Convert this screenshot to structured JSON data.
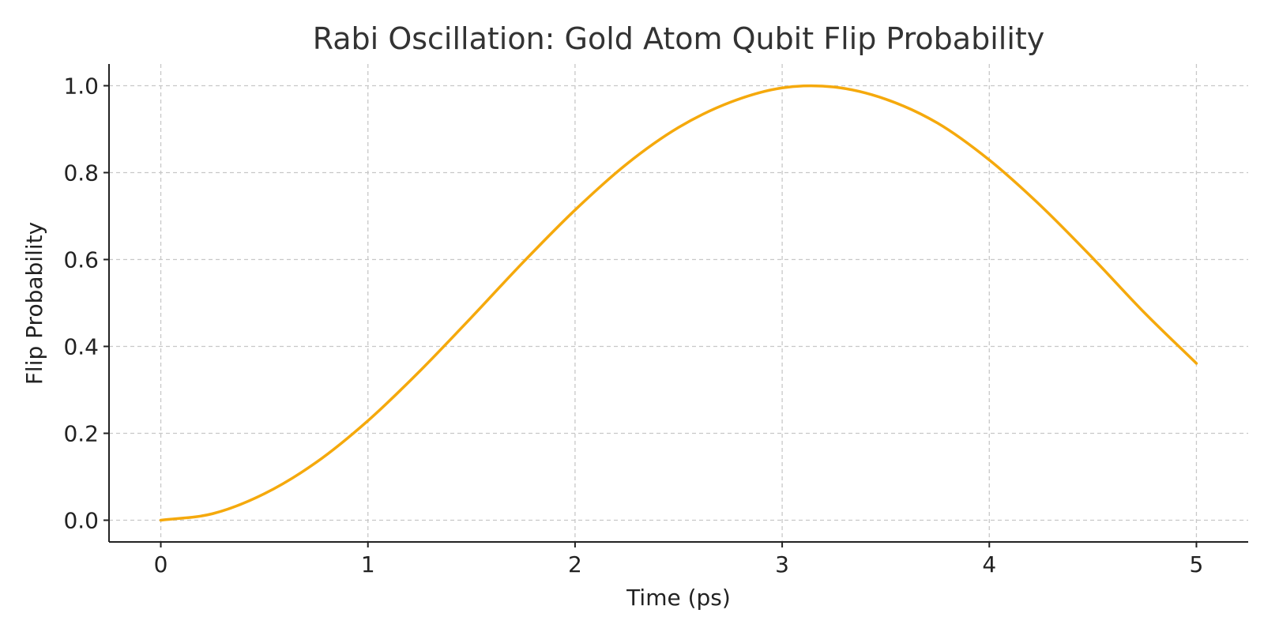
{
  "chart_data": {
    "type": "line",
    "title": "Rabi Oscillation: Gold Atom Qubit Flip Probability",
    "xlabel": "Time (ps)",
    "ylabel": "Flip Probability",
    "xlim": [
      -0.25,
      5.25
    ],
    "ylim": [
      -0.05,
      1.05
    ],
    "xticks": [
      0,
      1,
      2,
      3,
      4,
      5
    ],
    "xtick_labels": [
      "0",
      "1",
      "2",
      "3",
      "4",
      "5"
    ],
    "yticks": [
      0.0,
      0.2,
      0.4,
      0.6,
      0.8,
      1.0
    ],
    "ytick_labels": [
      "0.0",
      "0.2",
      "0.4",
      "0.6",
      "0.8",
      "1.0"
    ],
    "grid": true,
    "series": [
      {
        "color": "#f5a90c",
        "x": [
          0,
          0.25,
          0.5,
          0.75,
          1,
          1.25,
          1.5,
          1.75,
          2,
          2.25,
          2.5,
          2.75,
          3,
          3.25,
          3.5,
          3.75,
          4,
          4.25,
          4.5,
          4.75,
          5
        ],
        "y": [
          0.0,
          0.015,
          0.061,
          0.133,
          0.229,
          0.343,
          0.467,
          0.594,
          0.714,
          0.82,
          0.904,
          0.962,
          0.995,
          0.997,
          0.969,
          0.914,
          0.829,
          0.723,
          0.603,
          0.477,
          0.361
        ]
      }
    ]
  }
}
